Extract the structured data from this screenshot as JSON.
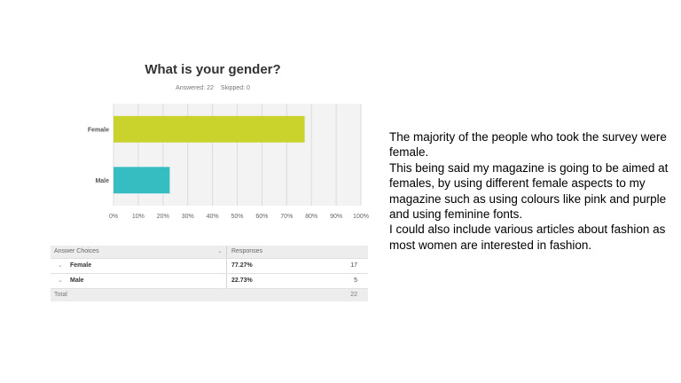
{
  "survey": {
    "question": "What is your gender?",
    "answered_label": "Answered: 22",
    "skipped_label": "Skipped: 0"
  },
  "chart_data": {
    "type": "bar",
    "orientation": "horizontal",
    "title": "What is your gender?",
    "categories": [
      "Female",
      "Male"
    ],
    "values": [
      77.27,
      22.73
    ],
    "colors": [
      "#c9d32b",
      "#35bdc2"
    ],
    "xlim": [
      0,
      100
    ],
    "x_ticks": [
      "0%",
      "10%",
      "20%",
      "30%",
      "40%",
      "50%",
      "60%",
      "70%",
      "80%",
      "90%",
      "100%"
    ],
    "grid": true
  },
  "table": {
    "headers": [
      "Answer Choices",
      "Responses"
    ],
    "rows": [
      {
        "choice": "Female",
        "percent": "77.27%",
        "count": "17"
      },
      {
        "choice": "Male",
        "percent": "22.73%",
        "count": "5"
      }
    ],
    "total_label": "Total",
    "total_count": "22",
    "chevron": "⌄"
  },
  "commentary": [
    "The majority of the people who took the survey were female.",
    "This being said my magazine is going to be aimed at females, by using different female aspects to my magazine such as using colours like pink and purple and using feminine fonts.",
    "I could also include various articles about fashion as most women are interested in fashion."
  ]
}
